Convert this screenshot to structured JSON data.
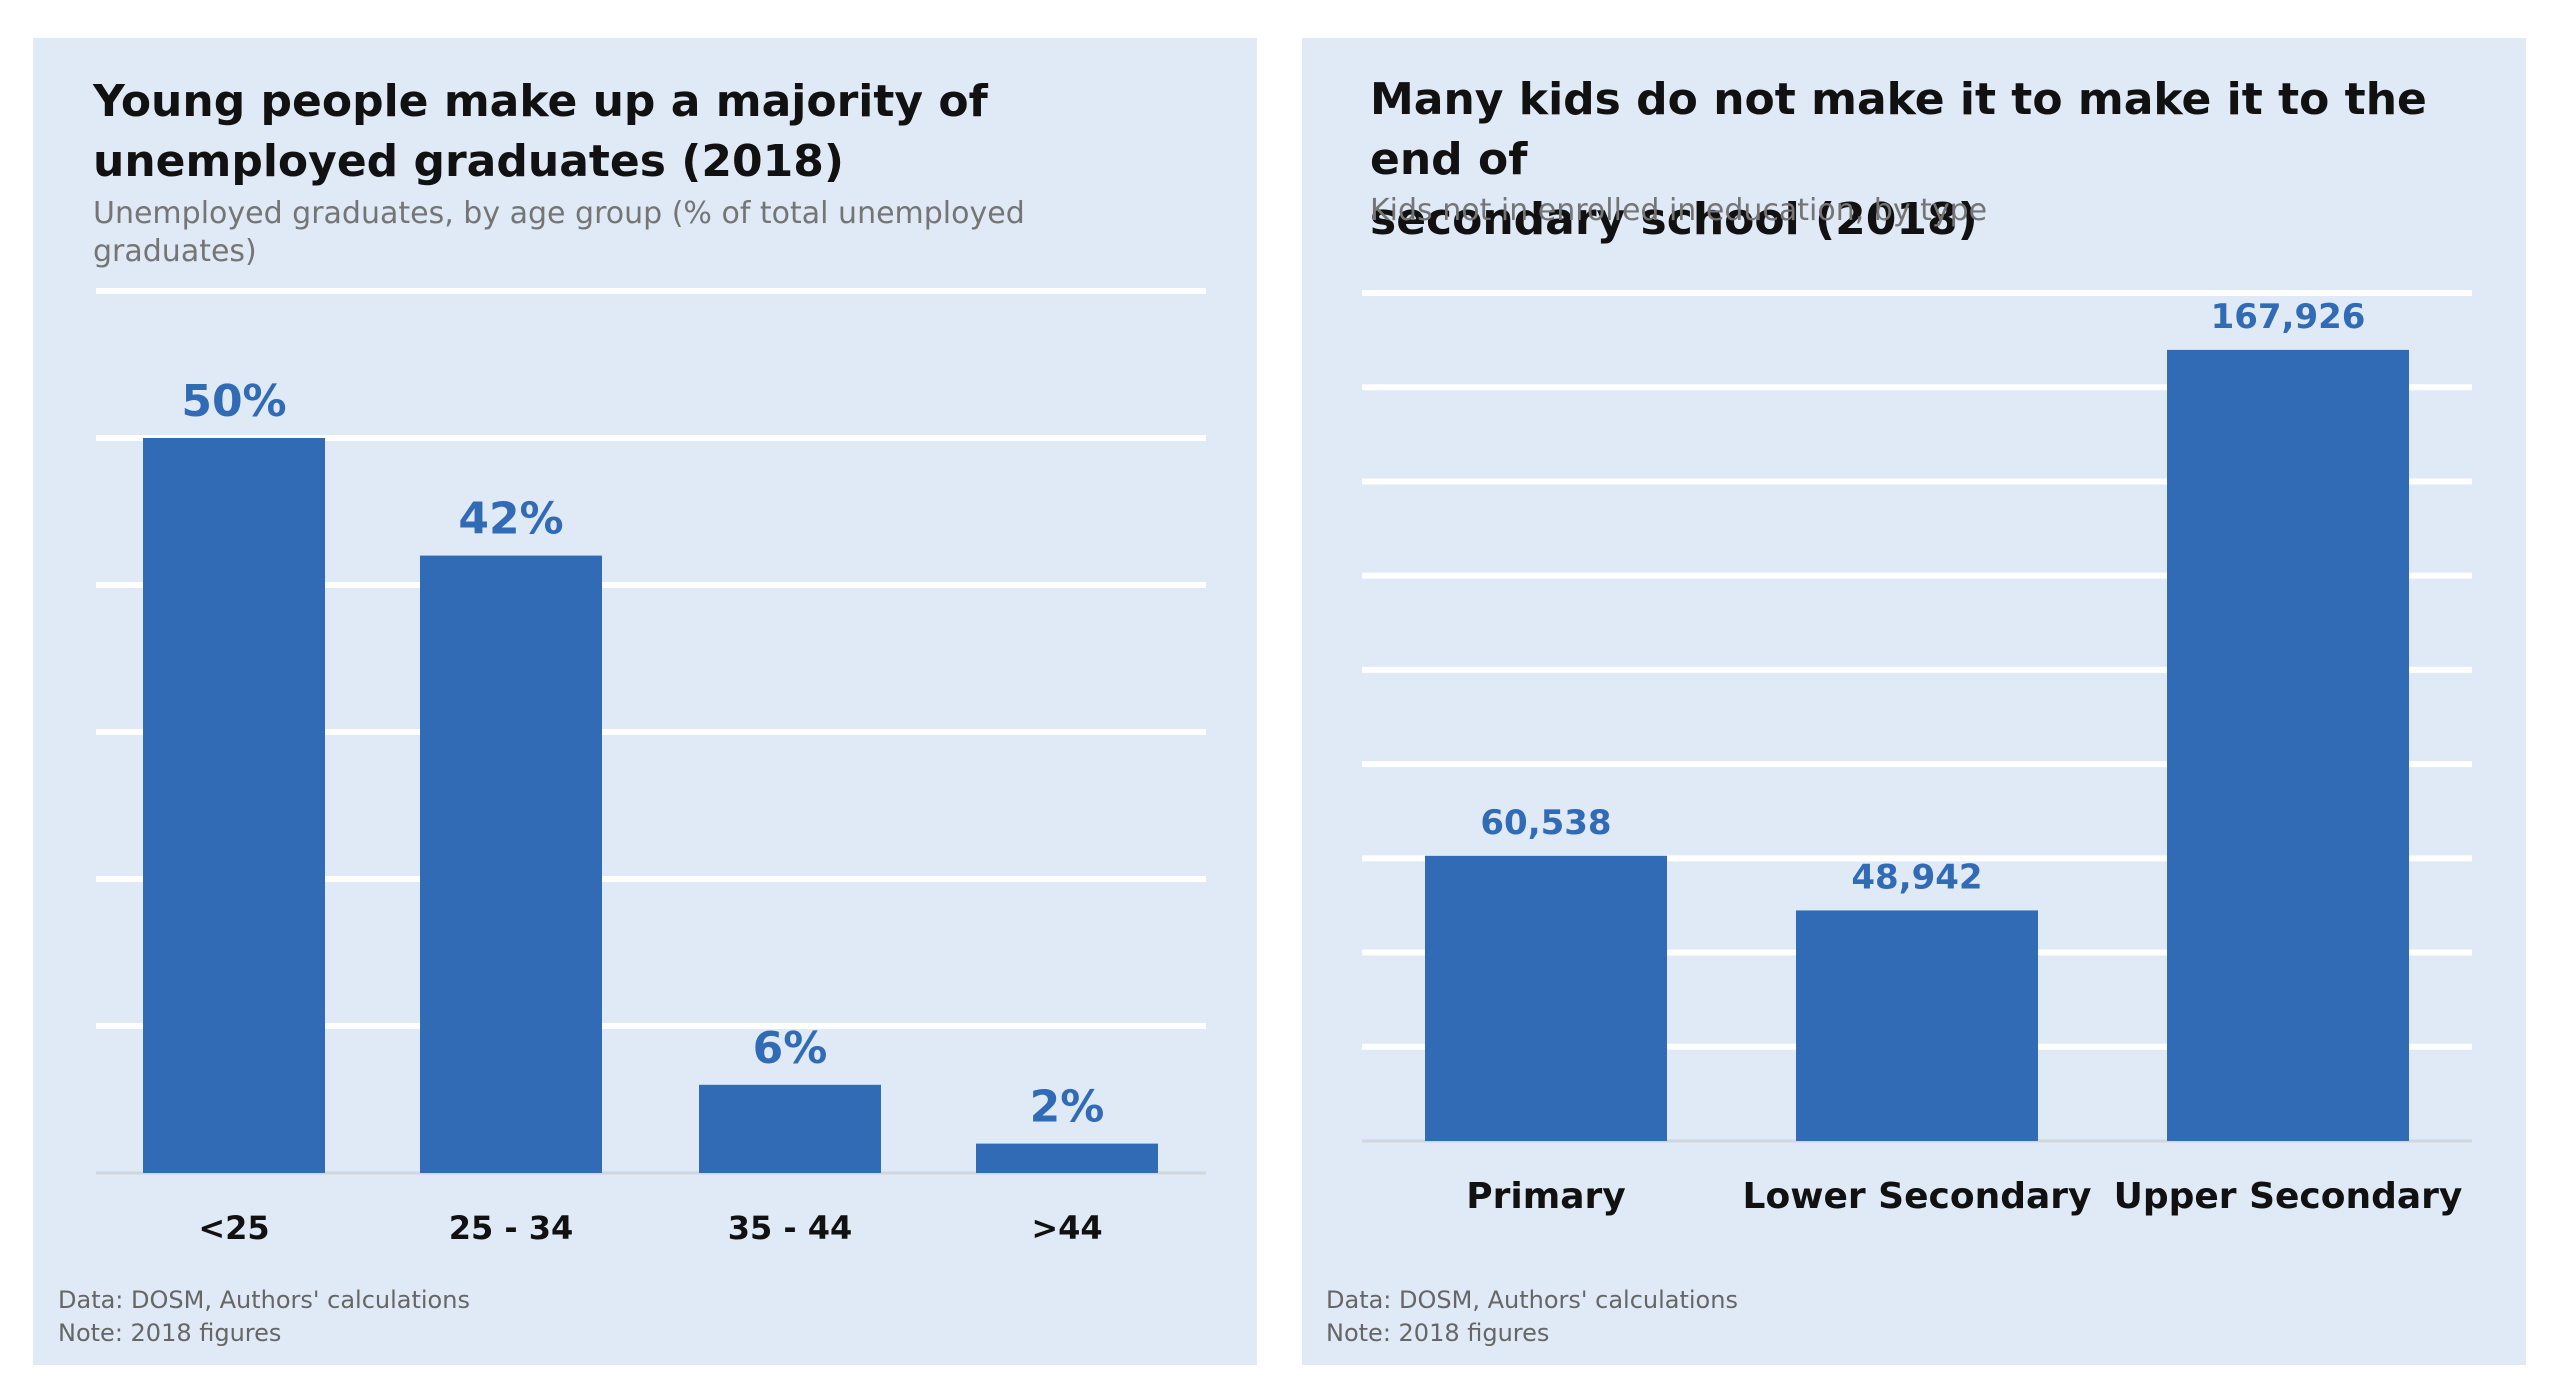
{
  "chart_data": [
    {
      "type": "bar",
      "title": "Young people make up a majority of\nunemployed graduates (2018)",
      "subtitle": "Unemployed graduates, by age group (% of total unemployed graduates)",
      "categories": [
        "<25",
        "25 - 34",
        "35 - 44",
        ">44"
      ],
      "values": [
        50,
        42,
        6,
        2
      ],
      "value_labels": [
        "50%",
        "42%",
        "6%",
        "2%"
      ],
      "ylim": [
        0,
        60
      ],
      "grid": true,
      "bar_color": "#316ab5",
      "source": [
        "Data: DOSM, Authors' calculations",
        "Note: 2018 figures"
      ]
    },
    {
      "type": "bar",
      "title": "Many kids do not make it to make it to the end of\nsecondary school (2018)",
      "subtitle": "Kids not in enrolled in education, by type",
      "categories": [
        "Primary",
        "Lower Secondary",
        "Upper Secondary"
      ],
      "values": [
        60538,
        48942,
        167926
      ],
      "value_labels": [
        "60,538",
        "48,942",
        "167,926"
      ],
      "ylim": [
        0,
        180000
      ],
      "grid": true,
      "bar_color": "#316ab5",
      "source": [
        "Data: DOSM, Authors' calculations",
        "Note: 2018 figures"
      ]
    }
  ]
}
